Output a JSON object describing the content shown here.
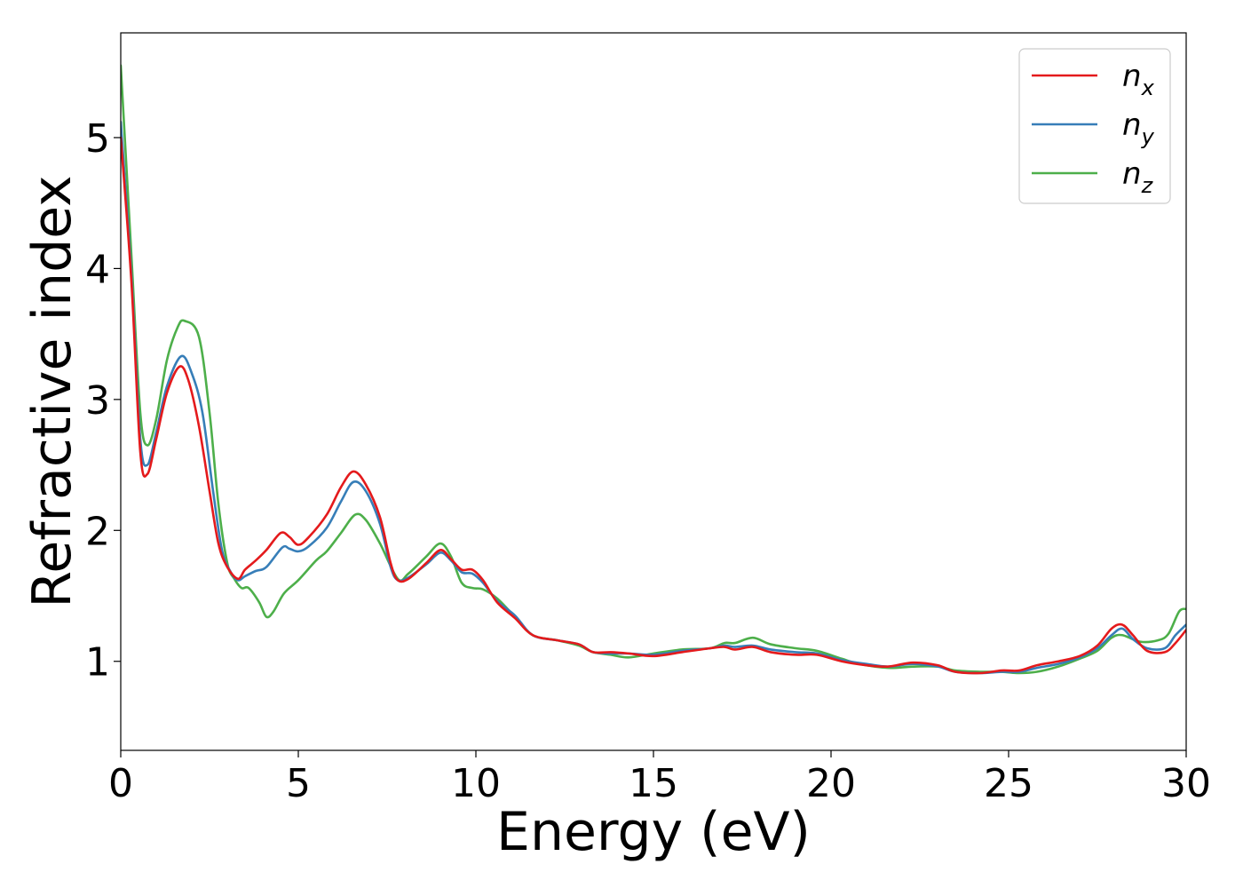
{
  "chart_data": {
    "type": "line",
    "title": "",
    "xlabel": "Energy (eV)",
    "ylabel": "Refractive index",
    "xlim": [
      0,
      30
    ],
    "ylim": [
      0.32,
      5.8
    ],
    "xticks": [
      0,
      5,
      10,
      15,
      20,
      25,
      30
    ],
    "yticks": [
      1,
      2,
      3,
      4,
      5
    ],
    "grid": false,
    "legend_position": "top-right",
    "series": [
      {
        "name": "n_x",
        "label_base": "n",
        "label_sub": "x",
        "color": "#e41a1c",
        "points": [
          [
            0,
            5.0
          ],
          [
            0.3,
            3.9
          ],
          [
            0.55,
            2.6
          ],
          [
            0.75,
            2.43
          ],
          [
            1.0,
            2.7
          ],
          [
            1.3,
            3.05
          ],
          [
            1.65,
            3.25
          ],
          [
            1.9,
            3.15
          ],
          [
            2.2,
            2.8
          ],
          [
            2.5,
            2.3
          ],
          [
            2.75,
            1.9
          ],
          [
            3.0,
            1.72
          ],
          [
            3.3,
            1.63
          ],
          [
            3.5,
            1.7
          ],
          [
            3.8,
            1.77
          ],
          [
            4.1,
            1.85
          ],
          [
            4.5,
            1.98
          ],
          [
            4.75,
            1.95
          ],
          [
            5.0,
            1.89
          ],
          [
            5.3,
            1.95
          ],
          [
            5.8,
            2.12
          ],
          [
            6.2,
            2.33
          ],
          [
            6.55,
            2.45
          ],
          [
            6.9,
            2.35
          ],
          [
            7.3,
            2.1
          ],
          [
            7.6,
            1.75
          ],
          [
            7.8,
            1.62
          ],
          [
            8.1,
            1.63
          ],
          [
            8.6,
            1.75
          ],
          [
            9.0,
            1.85
          ],
          [
            9.3,
            1.78
          ],
          [
            9.6,
            1.7
          ],
          [
            9.9,
            1.7
          ],
          [
            10.2,
            1.62
          ],
          [
            10.6,
            1.45
          ],
          [
            11.1,
            1.33
          ],
          [
            11.6,
            1.2
          ],
          [
            12.3,
            1.16
          ],
          [
            12.9,
            1.13
          ],
          [
            13.3,
            1.07
          ],
          [
            13.8,
            1.07
          ],
          [
            14.3,
            1.06
          ],
          [
            15.0,
            1.04
          ],
          [
            15.8,
            1.07
          ],
          [
            16.6,
            1.1
          ],
          [
            17.0,
            1.11
          ],
          [
            17.3,
            1.09
          ],
          [
            17.8,
            1.11
          ],
          [
            18.3,
            1.07
          ],
          [
            19.0,
            1.05
          ],
          [
            19.6,
            1.05
          ],
          [
            20.3,
            1.0
          ],
          [
            21.0,
            0.97
          ],
          [
            21.6,
            0.96
          ],
          [
            22.3,
            0.99
          ],
          [
            23.0,
            0.97
          ],
          [
            23.5,
            0.92
          ],
          [
            24.2,
            0.91
          ],
          [
            24.8,
            0.93
          ],
          [
            25.3,
            0.93
          ],
          [
            25.8,
            0.97
          ],
          [
            26.4,
            1.0
          ],
          [
            27.0,
            1.04
          ],
          [
            27.5,
            1.12
          ],
          [
            27.9,
            1.25
          ],
          [
            28.2,
            1.28
          ],
          [
            28.5,
            1.2
          ],
          [
            28.9,
            1.08
          ],
          [
            29.4,
            1.07
          ],
          [
            29.7,
            1.14
          ],
          [
            30.0,
            1.24
          ]
        ]
      },
      {
        "name": "n_y",
        "label_base": "n",
        "label_sub": "y",
        "color": "#377eb8",
        "points": [
          [
            0,
            5.12
          ],
          [
            0.3,
            3.95
          ],
          [
            0.55,
            2.7
          ],
          [
            0.75,
            2.5
          ],
          [
            1.0,
            2.75
          ],
          [
            1.3,
            3.1
          ],
          [
            1.7,
            3.33
          ],
          [
            2.0,
            3.2
          ],
          [
            2.3,
            2.9
          ],
          [
            2.6,
            2.3
          ],
          [
            2.85,
            1.85
          ],
          [
            3.1,
            1.68
          ],
          [
            3.3,
            1.62
          ],
          [
            3.5,
            1.65
          ],
          [
            3.8,
            1.69
          ],
          [
            4.1,
            1.72
          ],
          [
            4.55,
            1.87
          ],
          [
            4.75,
            1.86
          ],
          [
            5.0,
            1.84
          ],
          [
            5.3,
            1.88
          ],
          [
            5.8,
            2.02
          ],
          [
            6.2,
            2.22
          ],
          [
            6.55,
            2.37
          ],
          [
            6.9,
            2.3
          ],
          [
            7.3,
            2.05
          ],
          [
            7.6,
            1.72
          ],
          [
            7.8,
            1.62
          ],
          [
            8.1,
            1.64
          ],
          [
            8.6,
            1.74
          ],
          [
            9.0,
            1.83
          ],
          [
            9.3,
            1.77
          ],
          [
            9.6,
            1.68
          ],
          [
            9.9,
            1.67
          ],
          [
            10.2,
            1.6
          ],
          [
            10.6,
            1.46
          ],
          [
            11.1,
            1.35
          ],
          [
            11.6,
            1.2
          ],
          [
            12.3,
            1.16
          ],
          [
            12.9,
            1.13
          ],
          [
            13.3,
            1.07
          ],
          [
            13.8,
            1.06
          ],
          [
            14.3,
            1.06
          ],
          [
            15.0,
            1.05
          ],
          [
            15.8,
            1.08
          ],
          [
            16.6,
            1.1
          ],
          [
            17.0,
            1.12
          ],
          [
            17.3,
            1.11
          ],
          [
            17.8,
            1.12
          ],
          [
            18.3,
            1.09
          ],
          [
            19.0,
            1.07
          ],
          [
            19.6,
            1.06
          ],
          [
            20.3,
            1.01
          ],
          [
            21.0,
            0.98
          ],
          [
            21.6,
            0.96
          ],
          [
            22.3,
            0.98
          ],
          [
            23.0,
            0.96
          ],
          [
            23.5,
            0.92
          ],
          [
            24.2,
            0.91
          ],
          [
            24.8,
            0.92
          ],
          [
            25.3,
            0.92
          ],
          [
            25.8,
            0.95
          ],
          [
            26.4,
            0.98
          ],
          [
            27.0,
            1.03
          ],
          [
            27.5,
            1.1
          ],
          [
            27.9,
            1.2
          ],
          [
            28.2,
            1.25
          ],
          [
            28.5,
            1.17
          ],
          [
            28.9,
            1.1
          ],
          [
            29.4,
            1.1
          ],
          [
            29.7,
            1.2
          ],
          [
            30.0,
            1.28
          ]
        ]
      },
      {
        "name": "n_z",
        "label_base": "n",
        "label_sub": "z",
        "color": "#4daf4a",
        "points": [
          [
            0,
            5.55
          ],
          [
            0.3,
            4.1
          ],
          [
            0.55,
            2.9
          ],
          [
            0.75,
            2.65
          ],
          [
            1.0,
            2.85
          ],
          [
            1.3,
            3.3
          ],
          [
            1.6,
            3.55
          ],
          [
            1.8,
            3.6
          ],
          [
            2.2,
            3.48
          ],
          [
            2.5,
            2.9
          ],
          [
            2.75,
            2.2
          ],
          [
            3.0,
            1.75
          ],
          [
            3.2,
            1.63
          ],
          [
            3.4,
            1.56
          ],
          [
            3.6,
            1.56
          ],
          [
            3.9,
            1.45
          ],
          [
            4.1,
            1.34
          ],
          [
            4.3,
            1.38
          ],
          [
            4.6,
            1.52
          ],
          [
            5.0,
            1.62
          ],
          [
            5.5,
            1.77
          ],
          [
            5.8,
            1.84
          ],
          [
            6.2,
            1.98
          ],
          [
            6.6,
            2.12
          ],
          [
            6.9,
            2.08
          ],
          [
            7.3,
            1.9
          ],
          [
            7.8,
            1.63
          ],
          [
            8.1,
            1.67
          ],
          [
            8.6,
            1.8
          ],
          [
            9.0,
            1.9
          ],
          [
            9.3,
            1.8
          ],
          [
            9.6,
            1.6
          ],
          [
            9.9,
            1.56
          ],
          [
            10.2,
            1.55
          ],
          [
            10.6,
            1.48
          ],
          [
            11.1,
            1.34
          ],
          [
            11.6,
            1.2
          ],
          [
            12.3,
            1.16
          ],
          [
            12.9,
            1.12
          ],
          [
            13.3,
            1.07
          ],
          [
            13.8,
            1.05
          ],
          [
            14.3,
            1.03
          ],
          [
            15.0,
            1.06
          ],
          [
            15.8,
            1.09
          ],
          [
            16.6,
            1.1
          ],
          [
            17.0,
            1.14
          ],
          [
            17.3,
            1.14
          ],
          [
            17.8,
            1.18
          ],
          [
            18.3,
            1.13
          ],
          [
            19.0,
            1.1
          ],
          [
            19.6,
            1.08
          ],
          [
            20.3,
            1.02
          ],
          [
            20.8,
            0.98
          ],
          [
            21.6,
            0.95
          ],
          [
            22.3,
            0.96
          ],
          [
            23.0,
            0.96
          ],
          [
            23.5,
            0.93
          ],
          [
            24.2,
            0.92
          ],
          [
            24.8,
            0.92
          ],
          [
            25.3,
            0.91
          ],
          [
            25.8,
            0.92
          ],
          [
            26.4,
            0.96
          ],
          [
            27.0,
            1.02
          ],
          [
            27.5,
            1.08
          ],
          [
            27.9,
            1.18
          ],
          [
            28.2,
            1.2
          ],
          [
            28.7,
            1.15
          ],
          [
            29.2,
            1.16
          ],
          [
            29.5,
            1.21
          ],
          [
            29.8,
            1.38
          ],
          [
            30.0,
            1.4
          ]
        ]
      }
    ]
  }
}
